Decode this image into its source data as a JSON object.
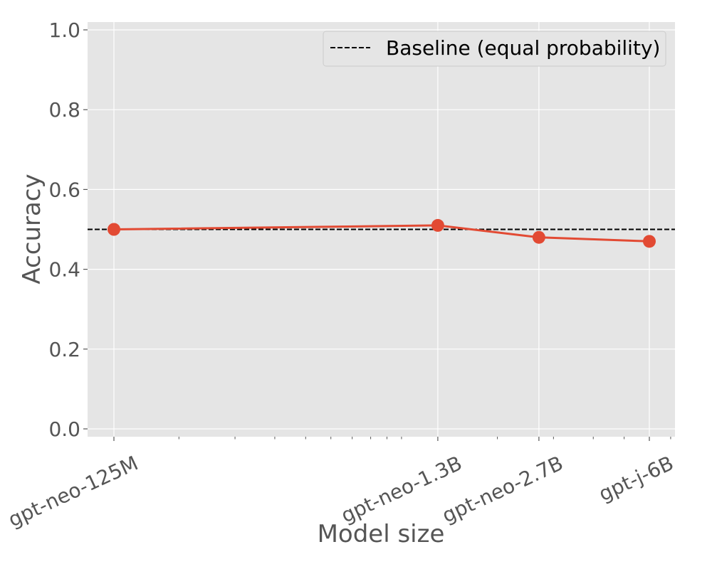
{
  "chart_data": {
    "type": "line",
    "xscale": "log",
    "categories": [
      "gpt-neo-125M",
      "gpt-neo-1.3B",
      "gpt-neo-2.7B",
      "gpt-j-6B"
    ],
    "x_params": [
      125000000,
      1300000000,
      2700000000,
      6000000000
    ],
    "series": [
      {
        "values": [
          0.5,
          0.51,
          0.48,
          0.47
        ],
        "color": "#E24A33"
      }
    ],
    "baseline": {
      "name": "Baseline (equal probability)",
      "value": 0.5,
      "color": "#000000",
      "style": "dashed"
    },
    "xlabel": "Model size",
    "ylabel": "Accuracy",
    "ylim": [
      0.0,
      1.0
    ],
    "yticks": [
      "0.0",
      "0.2",
      "0.4",
      "0.6",
      "0.8",
      "1.0"
    ],
    "grid": true,
    "legend_position": "top-right",
    "style": {
      "background": "#E5E5E5",
      "grid_color": "#FFFFFF",
      "text_color": "#555555"
    }
  }
}
